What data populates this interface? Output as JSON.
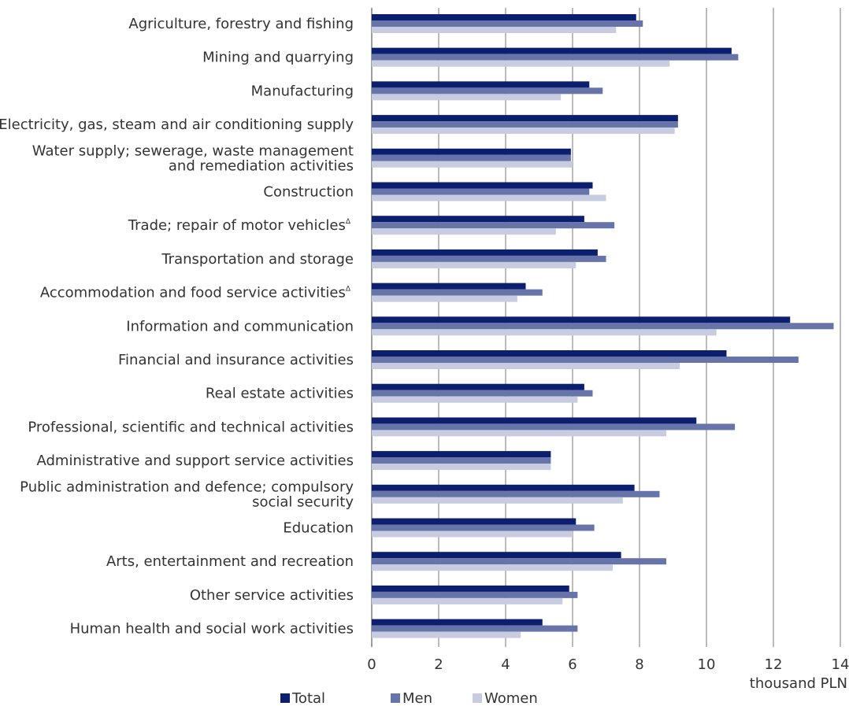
{
  "chart_data": {
    "type": "bar",
    "orientation": "horizontal",
    "categories": [
      "Agriculture, forestry and fishing",
      "Mining and quarrying",
      "Manufacturing",
      "Electricity, gas, steam and air conditioning supply",
      "Water supply; sewerage, waste management and remediation activities",
      "Construction",
      "Trade; repair of motor vehicles",
      "Transportation and storage",
      "Accommodation and food service activities",
      "Information and communication",
      "Financial and insurance activities",
      "Real estate activities",
      "Professional, scientific and technical activities",
      "Administrative and support service activities",
      "Public administration and defence; compulsory social security",
      "Education",
      "Arts, entertainment and recreation",
      "Other service activities",
      "Human health and social work activities"
    ],
    "category_lines": [
      [
        "Agriculture, forestry and fishing"
      ],
      [
        "Mining and quarrying"
      ],
      [
        "Manufacturing"
      ],
      [
        "Electricity, gas, steam and air conditioning supply"
      ],
      [
        "Water supply; sewerage, waste management",
        "and remediation activities"
      ],
      [
        "Construction"
      ],
      [
        "Trade; repair of motor vehicles"
      ],
      [
        "Transportation and storage"
      ],
      [
        "Accommodation and food service activities"
      ],
      [
        "Information and communication"
      ],
      [
        "Financial and insurance activities"
      ],
      [
        "Real estate activities"
      ],
      [
        "Professional, scientific and technical activities"
      ],
      [
        "Administrative and support service activities"
      ],
      [
        "Public administration and defence; compulsory",
        "social security"
      ],
      [
        "Education"
      ],
      [
        "Arts, entertainment and recreation"
      ],
      [
        "Other service activities"
      ],
      [
        "Human health and social work activities"
      ]
    ],
    "category_superscripts": [
      "",
      "",
      "",
      "",
      "",
      "",
      "Δ",
      "",
      "Δ",
      "",
      "",
      "",
      "",
      "",
      "",
      "",
      "",
      "",
      ""
    ],
    "series": [
      {
        "name": "Total",
        "color": "#0b1f6e",
        "values": [
          7.9,
          10.75,
          6.5,
          9.15,
          5.95,
          6.6,
          6.35,
          6.75,
          4.6,
          12.5,
          10.6,
          6.35,
          9.7,
          5.35,
          7.85,
          6.1,
          7.45,
          5.9,
          5.1
        ]
      },
      {
        "name": "Men",
        "color": "#6674aa",
        "values": [
          8.1,
          10.95,
          6.9,
          9.15,
          5.95,
          6.5,
          7.25,
          7.0,
          5.1,
          13.8,
          12.75,
          6.6,
          10.85,
          5.35,
          8.6,
          6.65,
          8.8,
          6.15,
          6.15
        ]
      },
      {
        "name": "Women",
        "color": "#c7cce1",
        "values": [
          7.3,
          8.9,
          5.65,
          9.05,
          6.0,
          7.0,
          5.5,
          6.1,
          4.35,
          10.3,
          9.2,
          6.15,
          8.8,
          5.35,
          7.5,
          6.0,
          7.2,
          5.7,
          4.45
        ]
      }
    ],
    "x_ticks": [
      "0",
      "2",
      "4",
      "6",
      "8",
      "10",
      "12",
      "14"
    ],
    "xlim": [
      0,
      14
    ],
    "xlabel": "thousand PLN",
    "grid": true,
    "legend_position": "bottom"
  }
}
